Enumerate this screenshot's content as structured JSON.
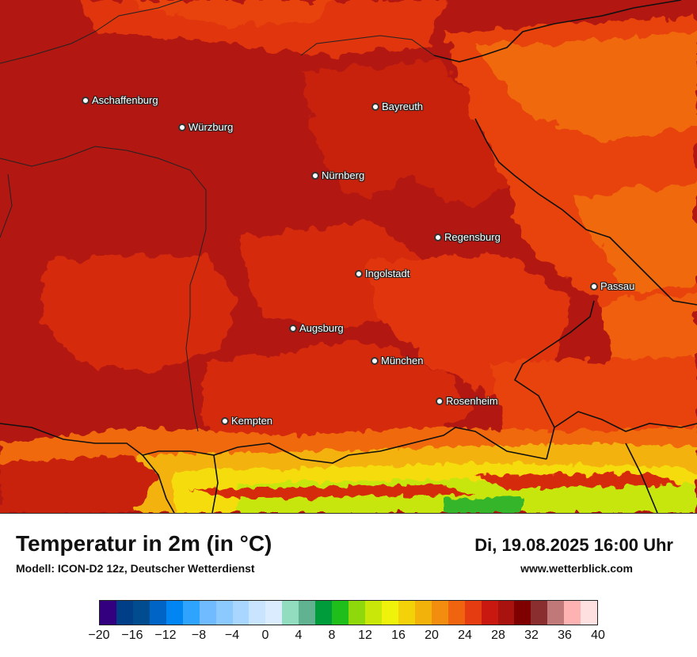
{
  "map": {
    "cities": [
      {
        "name": "Aschaffenburg"
      },
      {
        "name": "Würzburg"
      },
      {
        "name": "Bayreuth"
      },
      {
        "name": "Nürnberg"
      },
      {
        "name": "Regensburg"
      },
      {
        "name": "Ingolstadt"
      },
      {
        "name": "Passau"
      },
      {
        "name": "Augsburg"
      },
      {
        "name": "München"
      },
      {
        "name": "Rosenheim"
      },
      {
        "name": "Kempten"
      }
    ],
    "colors": {
      "dark_red": "#b31712",
      "red": "#d62a10",
      "orange_red": "#e8420c",
      "orange": "#f06a10",
      "yellow": "#f5dc10",
      "lime": "#c7e60a",
      "green": "#35b62b"
    }
  },
  "footer": {
    "title": "Temperatur in 2m (in °C)",
    "model": "Modell: ICON-D2 12z, Deutscher Wetterdienst",
    "datetime": "Di, 19.08.2025 16:00 Uhr",
    "website": "www.wetterblick.com"
  },
  "legend": {
    "colors": [
      "#33007f",
      "#003e87",
      "#004c8f",
      "#0063c6",
      "#0085f2",
      "#2fa4ff",
      "#70bbff",
      "#8cc9ff",
      "#a9d6ff",
      "#c8e4ff",
      "#dcecff",
      "#92dcc0",
      "#60b290",
      "#009c3c",
      "#1fbe1a",
      "#8ed80c",
      "#c9e80a",
      "#eff20a",
      "#f3d20a",
      "#f3b20a",
      "#f38d10",
      "#f06410",
      "#e63c12",
      "#c8180f",
      "#a8120f",
      "#7e0000",
      "#8a2e30",
      "#c07878",
      "#ffb2b2",
      "#ffe0e0"
    ],
    "ticks": [
      "−20",
      "−16",
      "−12",
      "−8",
      "−4",
      "0",
      "4",
      "8",
      "12",
      "16",
      "20",
      "24",
      "28",
      "32",
      "36",
      "40"
    ]
  }
}
